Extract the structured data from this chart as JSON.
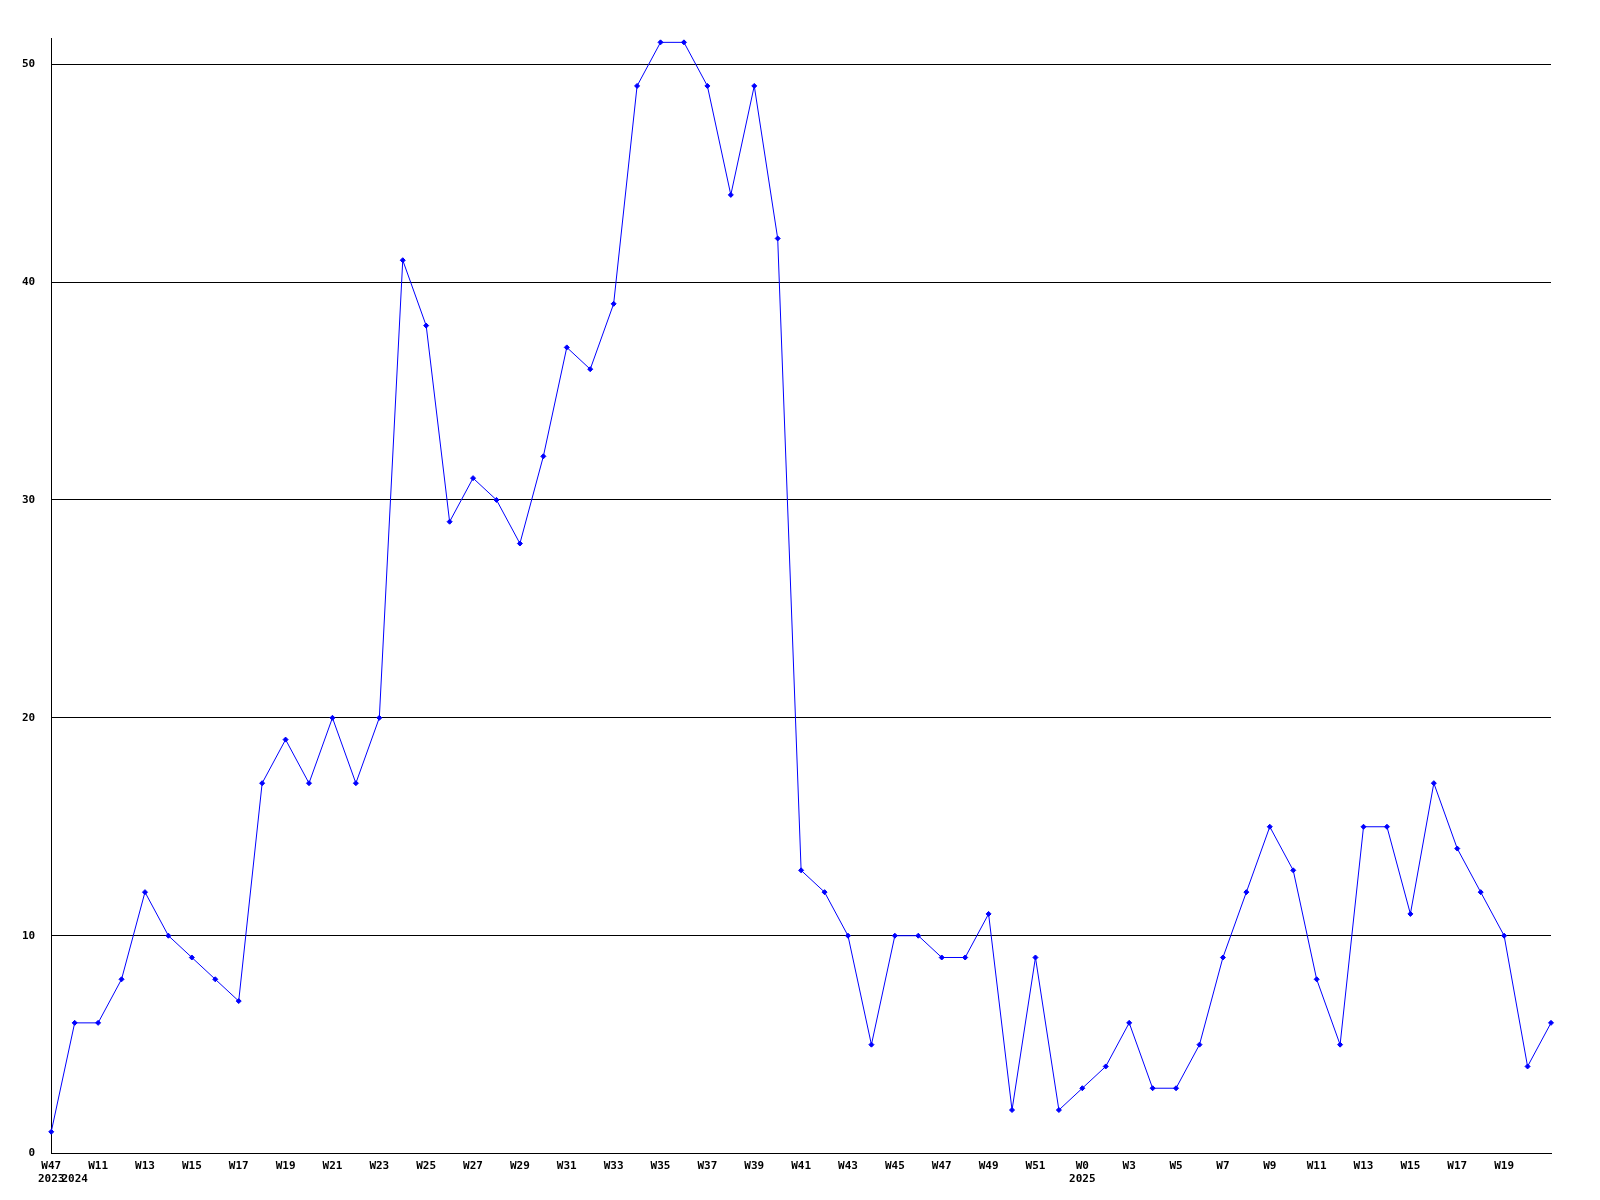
{
  "chart_data": {
    "type": "line",
    "categories": [
      "W47\n2023",
      "\n2024",
      "W11",
      null,
      "W13",
      null,
      "W15",
      null,
      "W17",
      null,
      "W19",
      null,
      "W21",
      null,
      "W23",
      null,
      "W25",
      null,
      "W27",
      null,
      "W29",
      null,
      "W31",
      null,
      "W33",
      null,
      "W35",
      null,
      "W37",
      null,
      "W39",
      null,
      "W41",
      null,
      "W43",
      null,
      "W45",
      null,
      "W47",
      null,
      "W49",
      null,
      "W51",
      null,
      "W0\n2025",
      null,
      "W3",
      null,
      "W5",
      null,
      "W7",
      null,
      "W9",
      null,
      "W11",
      null,
      "W13",
      null,
      "W15",
      null,
      "W17",
      null,
      "W19",
      null,
      null
    ],
    "series": [
      {
        "color": "#0000ff",
        "values": [
          1,
          6,
          6,
          8,
          12,
          10,
          9,
          8,
          7,
          17,
          19,
          17,
          20,
          17,
          20,
          41,
          38,
          29,
          31,
          30,
          28,
          32,
          37,
          36,
          39,
          49,
          51,
          51,
          49,
          44,
          49,
          42,
          13,
          12,
          10,
          5,
          10,
          10,
          9,
          9,
          11,
          2,
          9,
          2,
          3,
          4,
          6,
          3,
          3,
          5,
          9,
          12,
          15,
          13,
          8,
          5,
          15,
          15,
          11,
          17,
          14,
          12,
          10,
          4,
          6
        ]
      }
    ],
    "ylim": [
      0,
      51.2
    ],
    "yticks": [
      0,
      10,
      20,
      30,
      40,
      50
    ],
    "grid": "y",
    "legend": false,
    "marker": "diamond",
    "line_style": "solid"
  }
}
